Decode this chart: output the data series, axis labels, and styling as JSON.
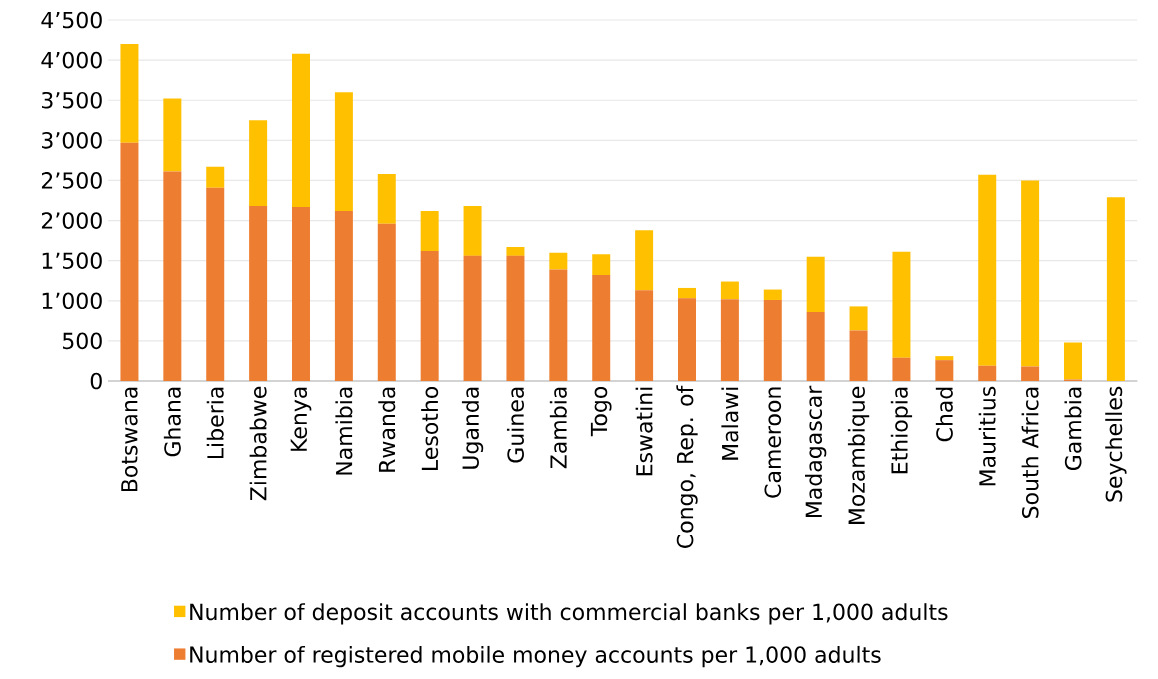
{
  "chart_data": {
    "type": "bar",
    "stacked": true,
    "categories": [
      "Botswana",
      "Ghana",
      "Liberia",
      "Zimbabwe",
      "Kenya",
      "Namibia",
      "Rwanda",
      "Lesotho",
      "Uganda",
      "Guinea",
      "Zambia",
      "Togo",
      "Eswatini",
      "Congo, Rep. of",
      "Malawi",
      "Cameroon",
      "Madagascar",
      "Mozambique",
      "Ethiopia",
      "Chad",
      "Mauritius",
      "South Africa",
      "Gambia",
      "Seychelles"
    ],
    "series": [
      {
        "name": "Number of registered mobile money accounts per 1,000 adults",
        "color": "#ed7d31",
        "values": [
          2970,
          2610,
          2410,
          2180,
          2170,
          2120,
          1960,
          1620,
          1560,
          1560,
          1390,
          1320,
          1130,
          1030,
          1020,
          1010,
          860,
          630,
          290,
          260,
          190,
          180,
          20,
          0
        ]
      },
      {
        "name": "Number of deposit accounts with commercial banks per 1,000 adults",
        "color": "#ffc000",
        "values": [
          1230,
          910,
          260,
          1070,
          1910,
          1480,
          620,
          500,
          620,
          110,
          210,
          260,
          750,
          130,
          220,
          130,
          690,
          300,
          1320,
          50,
          2380,
          2320,
          460,
          2290
        ]
      }
    ],
    "ylim": [
      0,
      4500
    ],
    "yticks": [
      0,
      500,
      {
        "value": 1000,
        "label": "1’000"
      },
      {
        "value": 1500,
        "label": "1’500"
      },
      {
        "value": 2000,
        "label": "2’000"
      },
      {
        "value": 2500,
        "label": "2’500"
      },
      {
        "value": 3000,
        "label": "3’000"
      },
      {
        "value": 3500,
        "label": "3’500"
      },
      {
        "value": 4000,
        "label": "4’000"
      },
      {
        "value": 4500,
        "label": "4’500"
      }
    ],
    "grid": "y",
    "legend": "bottom"
  }
}
